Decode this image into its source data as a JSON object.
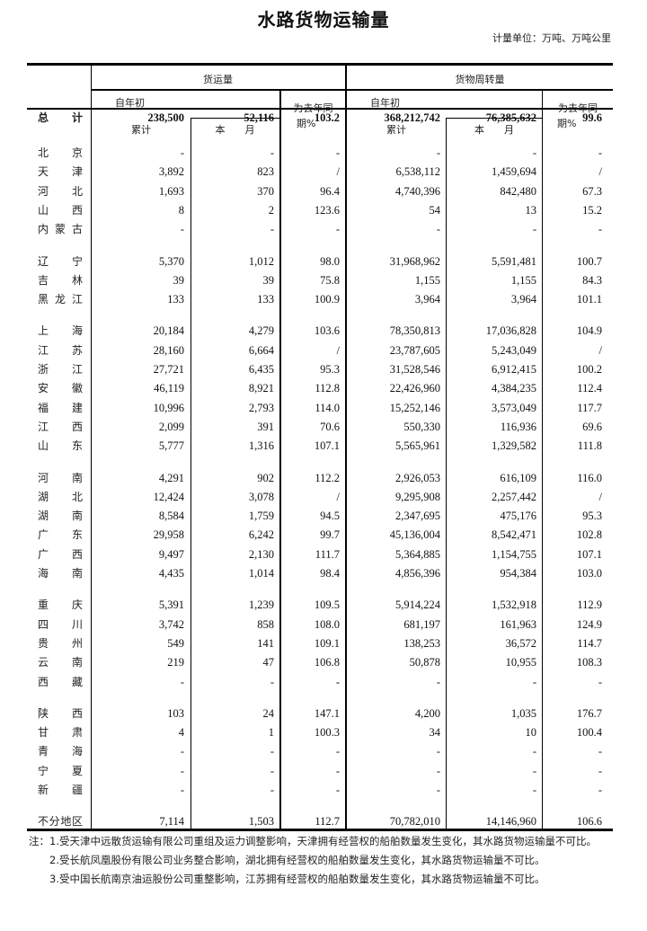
{
  "title": "水路货物运输量",
  "unit": "计量单位：万吨、万吨公里",
  "headers": {
    "freight": "货运量",
    "turnover": "货物周转量",
    "ytd_top": "自年初",
    "ytd_bottom": "累计",
    "month": "本　　月",
    "yoy_top": "为去年同",
    "yoy_bottom": "期%"
  },
  "total": {
    "region": "总　计",
    "values": [
      "238,500",
      "52,116",
      "103.2",
      "368,212,742",
      "76,385,632",
      "99.6"
    ]
  },
  "groups": [
    [
      {
        "region": "北京",
        "values": [
          "-",
          "-",
          "-",
          "-",
          "-",
          "-"
        ]
      },
      {
        "region": "天津",
        "values": [
          "3,892",
          "823",
          "/",
          "6,538,112",
          "1,459,694",
          "/"
        ]
      },
      {
        "region": "河北",
        "values": [
          "1,693",
          "370",
          "96.4",
          "4,740,396",
          "842,480",
          "67.3"
        ]
      },
      {
        "region": "山西",
        "values": [
          "8",
          "2",
          "123.6",
          "54",
          "13",
          "15.2"
        ]
      },
      {
        "region": "内蒙古",
        "values": [
          "-",
          "-",
          "-",
          "-",
          "-",
          "-"
        ]
      }
    ],
    [
      {
        "region": "辽宁",
        "values": [
          "5,370",
          "1,012",
          "98.0",
          "31,968,962",
          "5,591,481",
          "100.7"
        ]
      },
      {
        "region": "吉林",
        "values": [
          "39",
          "39",
          "75.8",
          "1,155",
          "1,155",
          "84.3"
        ]
      },
      {
        "region": "黑龙江",
        "values": [
          "133",
          "133",
          "100.9",
          "3,964",
          "3,964",
          "101.1"
        ]
      }
    ],
    [
      {
        "region": "上海",
        "values": [
          "20,184",
          "4,279",
          "103.6",
          "78,350,813",
          "17,036,828",
          "104.9"
        ]
      },
      {
        "region": "江苏",
        "values": [
          "28,160",
          "6,664",
          "/",
          "23,787,605",
          "5,243,049",
          "/"
        ]
      },
      {
        "region": "浙江",
        "values": [
          "27,721",
          "6,435",
          "95.3",
          "31,528,546",
          "6,912,415",
          "100.2"
        ]
      },
      {
        "region": "安徽",
        "values": [
          "46,119",
          "8,921",
          "112.8",
          "22,426,960",
          "4,384,235",
          "112.4"
        ]
      },
      {
        "region": "福建",
        "values": [
          "10,996",
          "2,793",
          "114.0",
          "15,252,146",
          "3,573,049",
          "117.7"
        ]
      },
      {
        "region": "江西",
        "values": [
          "2,099",
          "391",
          "70.6",
          "550,330",
          "116,936",
          "69.6"
        ]
      },
      {
        "region": "山东",
        "values": [
          "5,777",
          "1,316",
          "107.1",
          "5,565,961",
          "1,329,582",
          "111.8"
        ]
      }
    ],
    [
      {
        "region": "河南",
        "values": [
          "4,291",
          "902",
          "112.2",
          "2,926,053",
          "616,109",
          "116.0"
        ]
      },
      {
        "region": "湖北",
        "values": [
          "12,424",
          "3,078",
          "/",
          "9,295,908",
          "2,257,442",
          "/"
        ]
      },
      {
        "region": "湖南",
        "values": [
          "8,584",
          "1,759",
          "94.5",
          "2,347,695",
          "475,176",
          "95.3"
        ]
      },
      {
        "region": "广东",
        "values": [
          "29,958",
          "6,242",
          "99.7",
          "45,136,004",
          "8,542,471",
          "102.8"
        ]
      },
      {
        "region": "广西",
        "values": [
          "9,497",
          "2,130",
          "111.7",
          "5,364,885",
          "1,154,755",
          "107.1"
        ]
      },
      {
        "region": "海南",
        "values": [
          "4,435",
          "1,014",
          "98.4",
          "4,856,396",
          "954,384",
          "103.0"
        ]
      }
    ],
    [
      {
        "region": "重庆",
        "values": [
          "5,391",
          "1,239",
          "109.5",
          "5,914,224",
          "1,532,918",
          "112.9"
        ]
      },
      {
        "region": "四川",
        "values": [
          "3,742",
          "858",
          "108.0",
          "681,197",
          "161,963",
          "124.9"
        ]
      },
      {
        "region": "贵州",
        "values": [
          "549",
          "141",
          "109.1",
          "138,253",
          "36,572",
          "114.7"
        ]
      },
      {
        "region": "云南",
        "values": [
          "219",
          "47",
          "106.8",
          "50,878",
          "10,955",
          "108.3"
        ]
      },
      {
        "region": "西藏",
        "values": [
          "-",
          "-",
          "-",
          "-",
          "-",
          "-"
        ]
      }
    ],
    [
      {
        "region": "陕西",
        "values": [
          "103",
          "24",
          "147.1",
          "4,200",
          "1,035",
          "176.7"
        ]
      },
      {
        "region": "甘肃",
        "values": [
          "4",
          "1",
          "100.3",
          "34",
          "10",
          "100.4"
        ]
      },
      {
        "region": "青海",
        "values": [
          "-",
          "-",
          "-",
          "-",
          "-",
          "-"
        ]
      },
      {
        "region": "宁夏",
        "values": [
          "-",
          "-",
          "-",
          "-",
          "-",
          "-"
        ]
      },
      {
        "region": "新疆",
        "values": [
          "-",
          "-",
          "-",
          "-",
          "-",
          "-"
        ]
      }
    ],
    [
      {
        "region": "不分地区",
        "values": [
          "7,114",
          "1,503",
          "112.7",
          "70,782,010",
          "14,146,960",
          "106.6"
        ]
      }
    ]
  ],
  "notes": [
    "注：1.受天津中远散货运输有限公司重组及运力调整影响，天津拥有经营权的船舶数量发生变化，其水路货物运输量不可比。",
    "2.受长航凤凰股份有限公司业务整合影响，湖北拥有经营权的船舶数量发生变化，其水路货物运输量不可比。",
    "3.受中国长航南京油运股份公司重整影响，江苏拥有经营权的船舶数量发生变化，其水路货物运输量不可比。"
  ]
}
